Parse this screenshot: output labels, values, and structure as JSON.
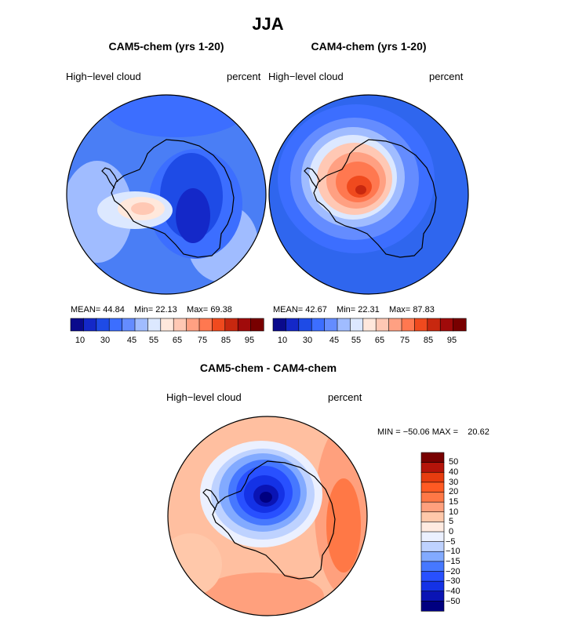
{
  "title": "JJA",
  "panels": [
    {
      "subtitle": "CAM5-chem (yrs 1-20)",
      "left_label": "High−level cloud",
      "right_label": "percent",
      "stats": {
        "mean_label": "MEAN=",
        "mean": "44.84",
        "min_label": "Min=",
        "min": "22.13",
        "max_label": "Max=",
        "max": "69.38"
      }
    },
    {
      "subtitle": "CAM4-chem (yrs 1-20)",
      "left_label": "High−level cloud",
      "right_label": "percent",
      "stats": {
        "mean_label": "MEAN=",
        "mean": "42.67",
        "min_label": "Min=",
        "min": "22.31",
        "max_label": "Max=",
        "max": "87.83"
      }
    },
    {
      "subtitle": "CAM5-chem - CAM4-chem",
      "left_label": "High−level cloud",
      "right_label": "percent",
      "stats": {
        "min_label": "MIN =",
        "min": "−50.06",
        "max_label": "MAX =",
        "max": "20.62"
      }
    }
  ],
  "colors": {
    "seq": [
      "#0a0a8c",
      "#1428c8",
      "#1e4be6",
      "#3c6eff",
      "#648cff",
      "#a0bcff",
      "#dce8ff",
      "#ffe8dc",
      "#ffc8b4",
      "#ffa082",
      "#ff7850",
      "#f04a1e",
      "#c8280f",
      "#a00a0a",
      "#780000"
    ],
    "div": [
      "#000080",
      "#0a14b4",
      "#1432e6",
      "#2850ff",
      "#4678ff",
      "#82aaff",
      "#bed2ff",
      "#ebf0ff",
      "#ffebe1",
      "#ffc8aa",
      "#ffa07d",
      "#ff7846",
      "#ff5a23",
      "#e63c0f",
      "#b4140a",
      "#780000"
    ],
    "continent_line": "#000000",
    "panel1_background": "#4a7ef5",
    "panel2_background": "#2f66ee",
    "panel3_background": "#ffbfa0"
  },
  "chart_data": [
    {
      "type": "heatmap",
      "title": "CAM5-chem (yrs 1-20)",
      "variable": "High-level cloud",
      "units": "percent",
      "projection": "south polar stereographic",
      "mean": 44.84,
      "min": 22.13,
      "max": 69.38,
      "colorbar_levels": [
        10,
        15,
        20,
        25,
        30,
        35,
        40,
        45,
        50,
        55,
        60,
        65,
        70,
        75,
        80,
        85,
        90,
        95
      ],
      "colorbar_tick_labels": [
        "10",
        "30",
        "45",
        "55",
        "65",
        "75",
        "85",
        "95"
      ]
    },
    {
      "type": "heatmap",
      "title": "CAM4-chem (yrs 1-20)",
      "variable": "High-level cloud",
      "units": "percent",
      "projection": "south polar stereographic",
      "mean": 42.67,
      "min": 22.31,
      "max": 87.83,
      "colorbar_levels": [
        10,
        15,
        20,
        25,
        30,
        35,
        40,
        45,
        50,
        55,
        60,
        65,
        70,
        75,
        80,
        85,
        90,
        95
      ],
      "colorbar_tick_labels": [
        "10",
        "30",
        "45",
        "55",
        "65",
        "75",
        "85",
        "95"
      ]
    },
    {
      "type": "heatmap",
      "title": "CAM5-chem - CAM4-chem",
      "variable": "High-level cloud",
      "units": "percent",
      "projection": "south polar stereographic",
      "min": -50.06,
      "max": 20.62,
      "colorbar_levels": [
        50,
        40,
        30,
        20,
        15,
        10,
        5,
        0,
        -5,
        -10,
        -15,
        -20,
        -30,
        -40,
        -50
      ],
      "colorbar_tick_labels": [
        "50",
        "40",
        "30",
        "20",
        "15",
        "10",
        "5",
        "0",
        "−5",
        "−10",
        "−15",
        "−20",
        "−30",
        "−40",
        "−50"
      ]
    }
  ]
}
